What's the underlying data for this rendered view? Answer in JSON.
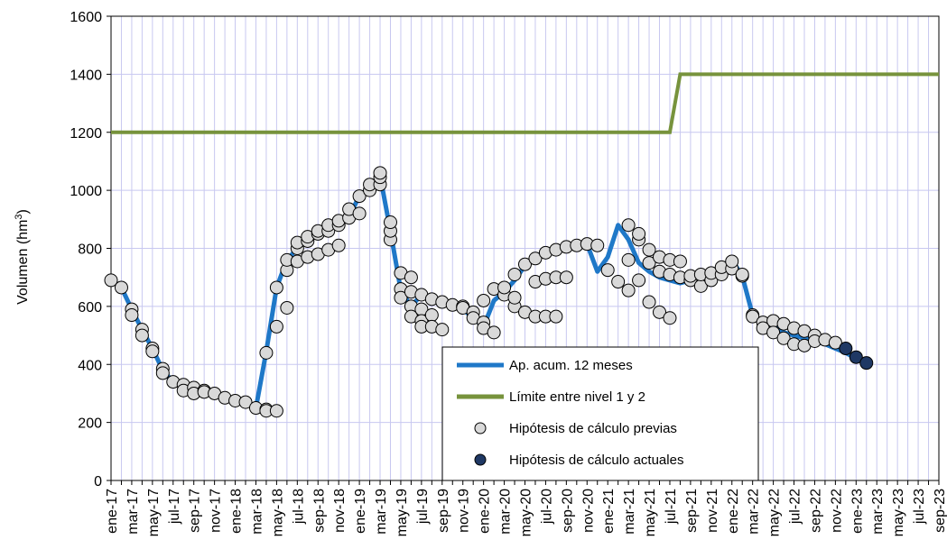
{
  "chart_data": {
    "type": "line",
    "ylabel": "Volumen (hm³)",
    "ylabel_base": "Volumen (hm",
    "ylabel_sup": "3",
    "ylabel_close": ")",
    "ylim": [
      0,
      1600
    ],
    "yticks": [
      0,
      200,
      400,
      600,
      800,
      1000,
      1200,
      1400,
      1600
    ],
    "grid": true,
    "legend_placement": "center-bottom",
    "x_month_labels": [
      "ene-17",
      "mar-17",
      "may-17",
      "jul-17",
      "sep-17",
      "nov-17",
      "ene-18",
      "mar-18",
      "may-18",
      "jul-18",
      "sep-18",
      "nov-18",
      "ene-19",
      "mar-19",
      "may-19",
      "jul-19",
      "sep-19",
      "nov-19",
      "ene-20",
      "mar-20",
      "may-20",
      "jul-20",
      "sep-20",
      "nov-20",
      "ene-21",
      "mar-21",
      "may-21",
      "jul-21",
      "sep-21",
      "nov-21",
      "ene-22",
      "mar-22",
      "may-22",
      "jul-22",
      "sep-22",
      "nov-22",
      "ene-23",
      "mar-23",
      "may-23",
      "jul-23",
      "sep-23"
    ],
    "legend": [
      {
        "key": "ap",
        "label": "Ap. acum. 12 meses",
        "color": "#1f78c8"
      },
      {
        "key": "limit",
        "label": "Límite entre nivel 1 y 2",
        "color": "#77933c"
      },
      {
        "key": "prev",
        "label": "Hipótesis de cálculo previas",
        "color": "#d9d9d9"
      },
      {
        "key": "curr",
        "label": "Hipótesis de cálculo actuales",
        "color": "#1f3864"
      }
    ],
    "series": [
      {
        "name": "Ap. acum. 12 meses",
        "color": "#1f78c8",
        "x": [
          "ene-17",
          "feb-17",
          "mar-17",
          "abr-17",
          "may-17",
          "jun-17",
          "jul-17",
          "ago-17",
          "sep-17",
          "oct-17",
          "nov-17",
          "dic-17",
          "ene-18",
          "feb-18",
          "mar-18",
          "abr-18",
          "may-18",
          "jun-18",
          "jul-18",
          "ago-18",
          "sep-18",
          "oct-18",
          "nov-18",
          "dic-18",
          "ene-19",
          "feb-19",
          "mar-19",
          "abr-19",
          "may-19",
          "jun-19",
          "jul-19",
          "ago-19",
          "sep-19",
          "oct-19",
          "nov-19",
          "dic-19",
          "ene-20",
          "feb-20",
          "mar-20",
          "abr-20",
          "may-20",
          "jun-20",
          "jul-20",
          "ago-20",
          "sep-20",
          "oct-20",
          "nov-20",
          "dic-20",
          "ene-21",
          "feb-21",
          "mar-21",
          "abr-21",
          "may-21",
          "jun-21",
          "jul-21",
          "ago-21",
          "sep-21",
          "oct-21",
          "nov-21",
          "dic-21",
          "ene-22",
          "feb-22",
          "mar-22",
          "abr-22",
          "may-22",
          "jun-22",
          "jul-22",
          "ago-22",
          "sep-22",
          "oct-22",
          "nov-22",
          "dic-22",
          "ene-23",
          "feb-23"
        ],
        "values": [
          690,
          665,
          590,
          520,
          455,
          380,
          340,
          325,
          315,
          310,
          300,
          285,
          275,
          270,
          250,
          445,
          665,
          760,
          800,
          830,
          850,
          870,
          890,
          910,
          980,
          1010,
          1050,
          860,
          655,
          600,
          640,
          625,
          610,
          600,
          590,
          560,
          530,
          620,
          650,
          690,
          740,
          770,
          790,
          800,
          805,
          810,
          815,
          720,
          770,
          880,
          830,
          750,
          720,
          700,
          690,
          680,
          690,
          700,
          720,
          740,
          760,
          705,
          570,
          545,
          530,
          510,
          500,
          490,
          480,
          470,
          455,
          440,
          420,
          405
        ]
      },
      {
        "name": "Límite entre nivel 1 y 2",
        "color": "#77933c",
        "x": [
          "ene-17",
          "jul-21",
          "ago-21",
          "sep-23"
        ],
        "values": [
          1200,
          1200,
          1400,
          1400
        ]
      }
    ],
    "scatter_previas": [
      [
        "ene-17",
        690
      ],
      [
        "feb-17",
        665
      ],
      [
        "mar-17",
        590
      ],
      [
        "mar-17",
        570
      ],
      [
        "abr-17",
        520
      ],
      [
        "abr-17",
        500
      ],
      [
        "may-17",
        455
      ],
      [
        "may-17",
        445
      ],
      [
        "jun-17",
        385
      ],
      [
        "jun-17",
        370
      ],
      [
        "jul-17",
        340
      ],
      [
        "ago-17",
        330
      ],
      [
        "ago-17",
        310
      ],
      [
        "sep-17",
        320
      ],
      [
        "sep-17",
        300
      ],
      [
        "oct-17",
        310
      ],
      [
        "oct-17",
        305
      ],
      [
        "nov-17",
        300
      ],
      [
        "dic-17",
        285
      ],
      [
        "ene-18",
        275
      ],
      [
        "feb-18",
        270
      ],
      [
        "mar-18",
        250
      ],
      [
        "abr-18",
        245
      ],
      [
        "abr-18",
        240
      ],
      [
        "abr-18",
        440
      ],
      [
        "may-18",
        240
      ],
      [
        "may-18",
        530
      ],
      [
        "may-18",
        665
      ],
      [
        "jun-18",
        595
      ],
      [
        "jun-18",
        725
      ],
      [
        "jun-18",
        760
      ],
      [
        "jul-18",
        755
      ],
      [
        "jul-18",
        800
      ],
      [
        "jul-18",
        820
      ],
      [
        "ago-18",
        770
      ],
      [
        "ago-18",
        825
      ],
      [
        "ago-18",
        840
      ],
      [
        "sep-18",
        780
      ],
      [
        "sep-18",
        850
      ],
      [
        "sep-18",
        860
      ],
      [
        "oct-18",
        795
      ],
      [
        "oct-18",
        860
      ],
      [
        "oct-18",
        880
      ],
      [
        "nov-18",
        810
      ],
      [
        "nov-18",
        880
      ],
      [
        "nov-18",
        895
      ],
      [
        "dic-18",
        905
      ],
      [
        "dic-18",
        935
      ],
      [
        "ene-19",
        920
      ],
      [
        "ene-19",
        980
      ],
      [
        "feb-19",
        1000
      ],
      [
        "feb-19",
        1020
      ],
      [
        "mar-19",
        1020
      ],
      [
        "mar-19",
        1045
      ],
      [
        "mar-19",
        1060
      ],
      [
        "abr-19",
        830
      ],
      [
        "abr-19",
        860
      ],
      [
        "abr-19",
        890
      ],
      [
        "may-19",
        715
      ],
      [
        "may-19",
        660
      ],
      [
        "may-19",
        630
      ],
      [
        "jun-19",
        700
      ],
      [
        "jun-19",
        650
      ],
      [
        "jun-19",
        600
      ],
      [
        "jun-19",
        565
      ],
      [
        "jul-19",
        640
      ],
      [
        "jul-19",
        590
      ],
      [
        "jul-19",
        550
      ],
      [
        "jul-19",
        530
      ],
      [
        "ago-19",
        625
      ],
      [
        "ago-19",
        570
      ],
      [
        "ago-19",
        530
      ],
      [
        "sep-19",
        615
      ],
      [
        "sep-19",
        520
      ],
      [
        "oct-19",
        605
      ],
      [
        "nov-19",
        600
      ],
      [
        "nov-19",
        595
      ],
      [
        "dic-19",
        580
      ],
      [
        "dic-19",
        560
      ],
      [
        "ene-20",
        545
      ],
      [
        "ene-20",
        525
      ],
      [
        "ene-20",
        620
      ],
      [
        "feb-20",
        510
      ],
      [
        "feb-20",
        660
      ],
      [
        "mar-20",
        640
      ],
      [
        "mar-20",
        665
      ],
      [
        "abr-20",
        600
      ],
      [
        "abr-20",
        630
      ],
      [
        "abr-20",
        710
      ],
      [
        "may-20",
        580
      ],
      [
        "may-20",
        745
      ],
      [
        "jun-20",
        565
      ],
      [
        "jun-20",
        685
      ],
      [
        "jun-20",
        765
      ],
      [
        "jul-20",
        565
      ],
      [
        "jul-20",
        695
      ],
      [
        "jul-20",
        785
      ],
      [
        "ago-20",
        565
      ],
      [
        "ago-20",
        700
      ],
      [
        "ago-20",
        795
      ],
      [
        "sep-20",
        700
      ],
      [
        "sep-20",
        805
      ],
      [
        "oct-20",
        810
      ],
      [
        "nov-20",
        815
      ],
      [
        "dic-20",
        810
      ],
      [
        "ene-21",
        725
      ],
      [
        "feb-21",
        685
      ],
      [
        "mar-21",
        655
      ],
      [
        "mar-21",
        760
      ],
      [
        "mar-21",
        880
      ],
      [
        "abr-21",
        690
      ],
      [
        "abr-21",
        830
      ],
      [
        "abr-21",
        850
      ],
      [
        "may-21",
        615
      ],
      [
        "may-21",
        750
      ],
      [
        "may-21",
        795
      ],
      [
        "jun-21",
        580
      ],
      [
        "jun-21",
        720
      ],
      [
        "jun-21",
        770
      ],
      [
        "jul-21",
        560
      ],
      [
        "jul-21",
        710
      ],
      [
        "jul-21",
        760
      ],
      [
        "ago-21",
        700
      ],
      [
        "ago-21",
        755
      ],
      [
        "sep-21",
        690
      ],
      [
        "sep-21",
        705
      ],
      [
        "oct-21",
        670
      ],
      [
        "oct-21",
        710
      ],
      [
        "nov-21",
        690
      ],
      [
        "nov-21",
        715
      ],
      [
        "dic-21",
        710
      ],
      [
        "dic-21",
        735
      ],
      [
        "ene-22",
        730
      ],
      [
        "ene-22",
        755
      ],
      [
        "feb-22",
        705
      ],
      [
        "feb-22",
        710
      ],
      [
        "mar-22",
        570
      ],
      [
        "mar-22",
        565
      ],
      [
        "abr-22",
        545
      ],
      [
        "abr-22",
        525
      ],
      [
        "may-22",
        550
      ],
      [
        "may-22",
        510
      ],
      [
        "jun-22",
        540
      ],
      [
        "jun-22",
        490
      ],
      [
        "jul-22",
        525
      ],
      [
        "jul-22",
        470
      ],
      [
        "ago-22",
        515
      ],
      [
        "ago-22",
        465
      ],
      [
        "sep-22",
        500
      ],
      [
        "sep-22",
        480
      ],
      [
        "oct-22",
        485
      ],
      [
        "nov-22",
        475
      ]
    ],
    "scatter_actuales": [
      [
        "dic-22",
        455
      ],
      [
        "ene-23",
        425
      ],
      [
        "feb-23",
        405
      ]
    ]
  }
}
